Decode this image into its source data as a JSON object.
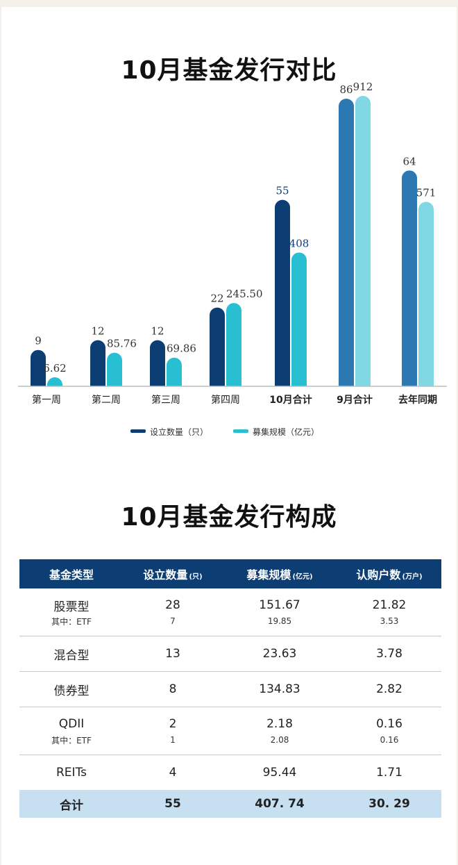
{
  "chart_title": "10月基金发行对比",
  "table_title": "10月基金发行构成",
  "chart_data": {
    "type": "bar",
    "categories": [
      "第一周",
      "第二周",
      "第三周",
      "第四周",
      "10月合计",
      "9月合计",
      "去年同期"
    ],
    "series": [
      {
        "name": "设立数量（只）",
        "values": [
          9,
          12,
          12,
          22,
          55,
          86,
          64
        ],
        "labels": [
          "9",
          "12",
          "12",
          "22",
          "55",
          "86",
          "64"
        ]
      },
      {
        "name": "募集规模（亿元）",
        "values": [
          6.62,
          85.76,
          69.86,
          245.5,
          408,
          912,
          571
        ],
        "labels": [
          "6.62",
          "85.76",
          "69.86",
          "245.50",
          "408",
          "912",
          "571"
        ]
      }
    ],
    "colors": {
      "series1": "#0c3e74",
      "series2": "#29bfd2",
      "series1_prev": "#2b78b3",
      "series2_prev": "#7fd8e4",
      "label_highlight": "#0c3e74",
      "label_normal": "#333333"
    },
    "legend_position": "bottom-center",
    "grid": false
  },
  "legend": {
    "s1": "设立数量（只）",
    "s2": "募集规模（亿元）"
  },
  "table": {
    "headers": {
      "type": "基金类型",
      "count": "设立数量",
      "count_unit": "(只)",
      "scale": "募集规模",
      "scale_unit": "(亿元)",
      "users": "认购户数",
      "users_unit": "(万户)"
    },
    "rows": [
      {
        "type": "股票型",
        "count": "28",
        "scale": "151.67",
        "users": "21.82",
        "sub": {
          "type": "其中：ETF",
          "count": "7",
          "scale": "19.85",
          "users": "3.53"
        }
      },
      {
        "type": "混合型",
        "count": "13",
        "scale": "23.63",
        "users": "3.78"
      },
      {
        "type": "债券型",
        "count": "8",
        "scale": "134.83",
        "users": "2.82"
      },
      {
        "type": "QDII",
        "count": "2",
        "scale": "2.18",
        "users": "0.16",
        "sub": {
          "type": "其中：ETF",
          "count": "1",
          "scale": "2.08",
          "users": "0.16"
        }
      },
      {
        "type": "REITs",
        "count": "4",
        "scale": "95.44",
        "users": "1.71"
      }
    ],
    "total": {
      "type": "合计",
      "count": "55",
      "scale": "407. 74",
      "users": "30. 29"
    }
  }
}
